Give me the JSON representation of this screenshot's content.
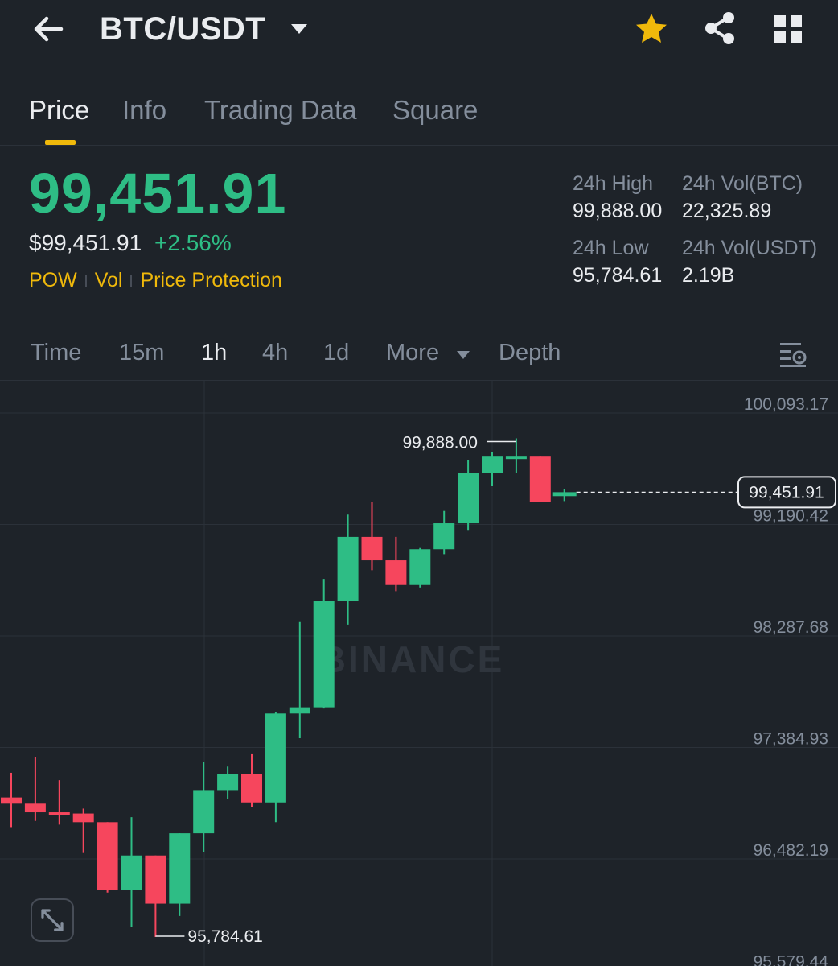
{
  "header": {
    "pair": "BTC/USDT",
    "icons": [
      "back-arrow-icon",
      "caret-down-icon",
      "star-icon",
      "share-icon",
      "grid-icon"
    ],
    "star_color": "#f0b90b"
  },
  "tabs": [
    {
      "label": "Price",
      "active": true
    },
    {
      "label": "Info",
      "active": false
    },
    {
      "label": "Trading Data",
      "active": false
    },
    {
      "label": "Square",
      "active": false
    }
  ],
  "ticker": {
    "last_price": "99,451.91",
    "usd_price": "$99,451.91",
    "change_pct": "+2.56%",
    "badges": [
      "POW",
      "Vol",
      "Price Protection"
    ],
    "stats": {
      "high_label": "24h High",
      "high_value": "99,888.00",
      "vol_btc_label": "24h Vol(BTC)",
      "vol_btc_value": "22,325.89",
      "low_label": "24h Low",
      "low_value": "95,784.61",
      "vol_usdt_label": "24h Vol(USDT)",
      "vol_usdt_value": "2.19B"
    }
  },
  "intervals": {
    "items": [
      "Time",
      "15m",
      "1h",
      "4h",
      "1d",
      "More",
      "Depth"
    ],
    "active": "1h"
  },
  "chart_data": {
    "type": "candlestick",
    "interval": "1h",
    "watermark": "BINANCE",
    "y_ticks": [
      "100,093.17",
      "99,190.42",
      "98,287.68",
      "97,384.93",
      "96,482.19",
      "95,579.44"
    ],
    "last_price_label": "99,451.91",
    "high_marker": "99,888.00",
    "low_marker": "95,784.61",
    "colors": {
      "up": "#2ebd85",
      "down": "#f6465d"
    },
    "candles": [
      {
        "o": 96980,
        "h": 97180,
        "l": 96740,
        "c": 96930
      },
      {
        "o": 96930,
        "h": 97310,
        "l": 96790,
        "c": 96860
      },
      {
        "o": 96860,
        "h": 97120,
        "l": 96760,
        "c": 96850
      },
      {
        "o": 96850,
        "h": 96890,
        "l": 96530,
        "c": 96780
      },
      {
        "o": 96780,
        "h": 96780,
        "l": 96210,
        "c": 96230
      },
      {
        "o": 96230,
        "h": 96820,
        "l": 95930,
        "c": 96510
      },
      {
        "o": 96510,
        "h": 96510,
        "l": 95850,
        "c": 96120
      },
      {
        "o": 96120,
        "h": 96690,
        "l": 96020,
        "c": 96690
      },
      {
        "o": 96690,
        "h": 97270,
        "l": 96540,
        "c": 97040
      },
      {
        "o": 97040,
        "h": 97230,
        "l": 96970,
        "c": 97170
      },
      {
        "o": 97170,
        "h": 97330,
        "l": 96900,
        "c": 96940
      },
      {
        "o": 96940,
        "h": 97670,
        "l": 96780,
        "c": 97660
      },
      {
        "o": 97660,
        "h": 98400,
        "l": 97460,
        "c": 97710
      },
      {
        "o": 97710,
        "h": 98750,
        "l": 97700,
        "c": 98570
      },
      {
        "o": 98570,
        "h": 99270,
        "l": 98380,
        "c": 99090
      },
      {
        "o": 99090,
        "h": 99370,
        "l": 98820,
        "c": 98900
      },
      {
        "o": 98900,
        "h": 99090,
        "l": 98650,
        "c": 98700
      },
      {
        "o": 98700,
        "h": 99000,
        "l": 98680,
        "c": 98990
      },
      {
        "o": 98990,
        "h": 99300,
        "l": 98950,
        "c": 99200
      },
      {
        "o": 99200,
        "h": 99710,
        "l": 99140,
        "c": 99610
      },
      {
        "o": 99610,
        "h": 99780,
        "l": 99500,
        "c": 99740
      },
      {
        "o": 99740,
        "h": 99888,
        "l": 99610,
        "c": 99740
      },
      {
        "o": 99740,
        "h": 99740,
        "l": 99370,
        "c": 99370
      },
      {
        "o": 99420,
        "h": 99480,
        "l": 99380,
        "c": 99451.91
      }
    ]
  }
}
